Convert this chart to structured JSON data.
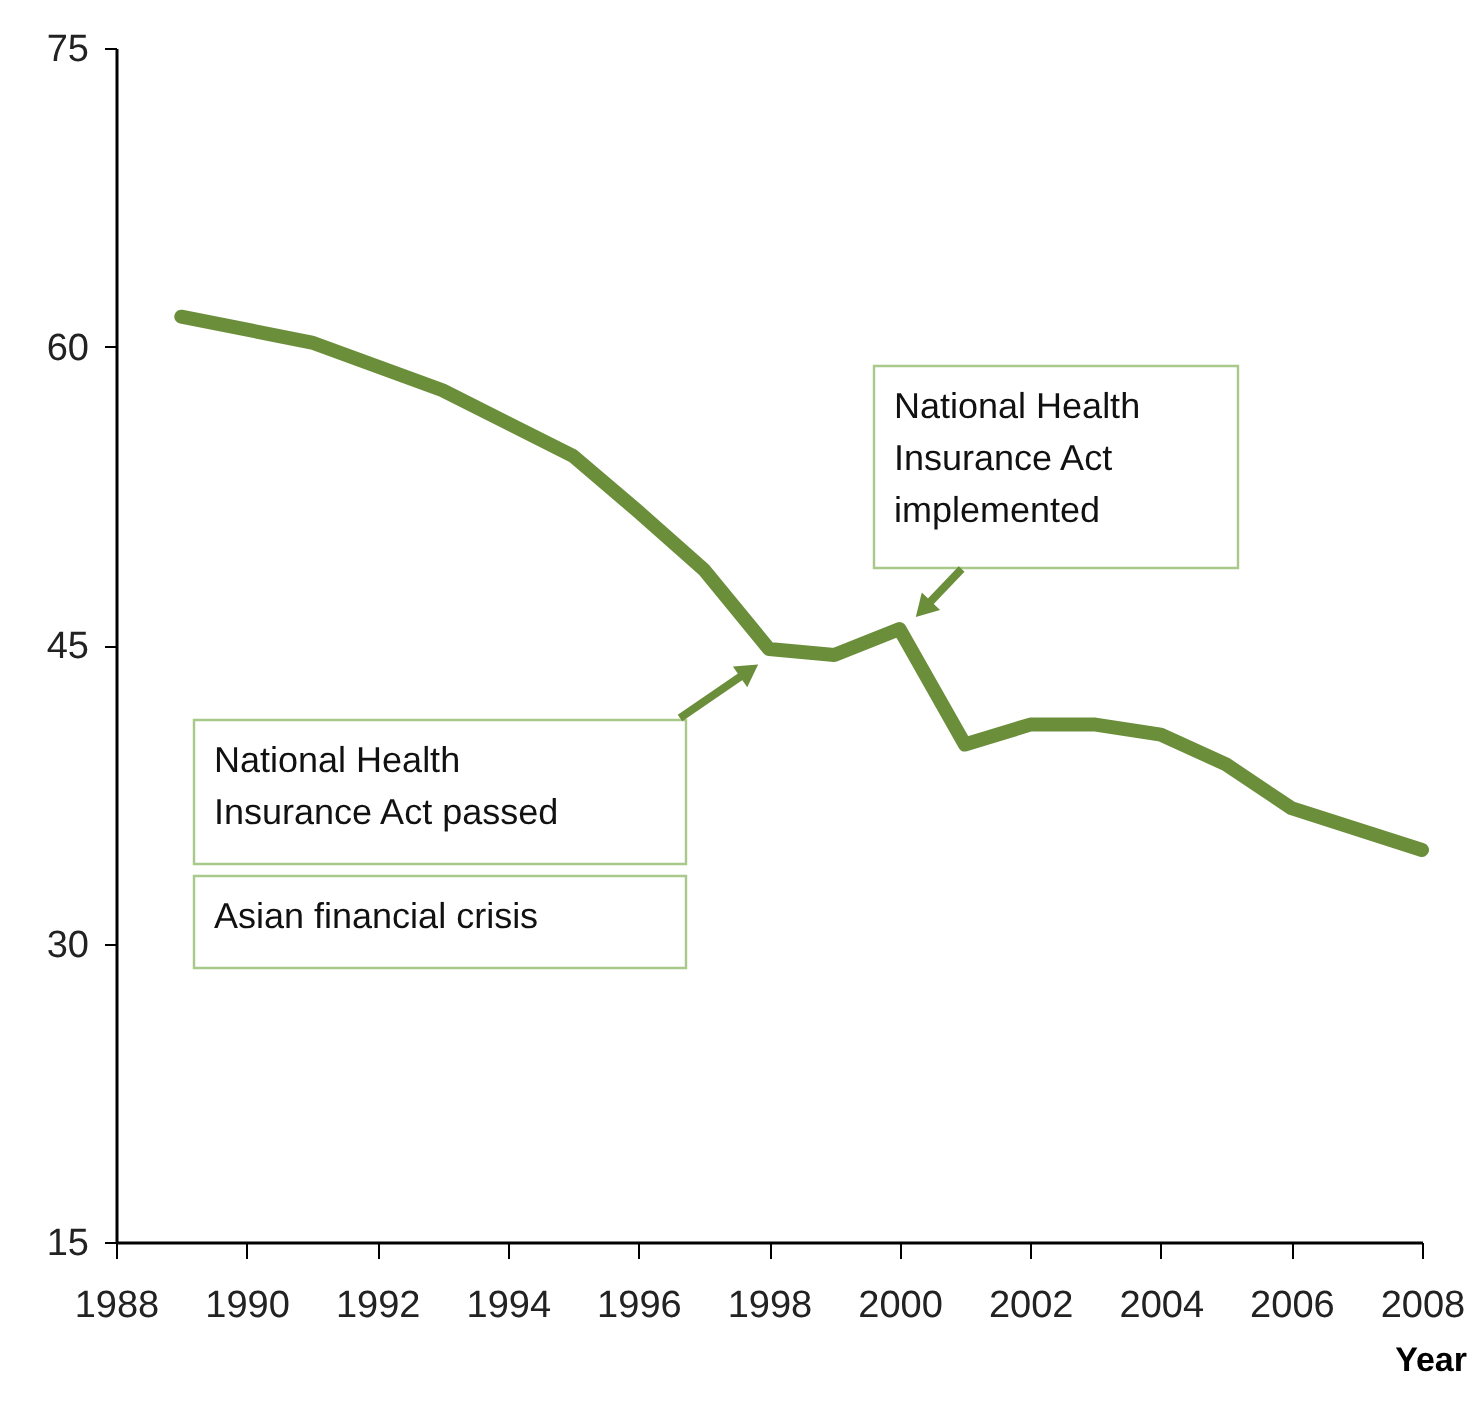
{
  "chart_data": {
    "type": "line",
    "xlabel": "Year",
    "color": "#6b8e3a",
    "grid": false,
    "marker": "none",
    "line_style": "solid",
    "x": [
      1989,
      1991,
      1993,
      1995,
      1996,
      1997,
      1998,
      1999,
      2000,
      2001,
      2002,
      2003,
      2004,
      2005,
      2006,
      2008
    ],
    "values": [
      61.5,
      60.2,
      57.8,
      54.5,
      51.7,
      48.8,
      44.8,
      44.5,
      45.8,
      40,
      41,
      41,
      40.5,
      39,
      36.8,
      34.7
    ],
    "xlim": [
      1988,
      2008
    ],
    "xticks": [
      1988,
      1990,
      1992,
      1994,
      1996,
      1998,
      2000,
      2002,
      2004,
      2006,
      2008
    ],
    "ylim": [
      15,
      75
    ],
    "yticks": [
      15,
      30,
      45,
      60,
      75
    ],
    "annotations": [
      "National Health Insurance Act passed",
      {
        "text": "National Health Insurance Act implemented",
        "x": 2000,
        "y": 45.8
      },
      "Asian financial crisis"
    ]
  }
}
